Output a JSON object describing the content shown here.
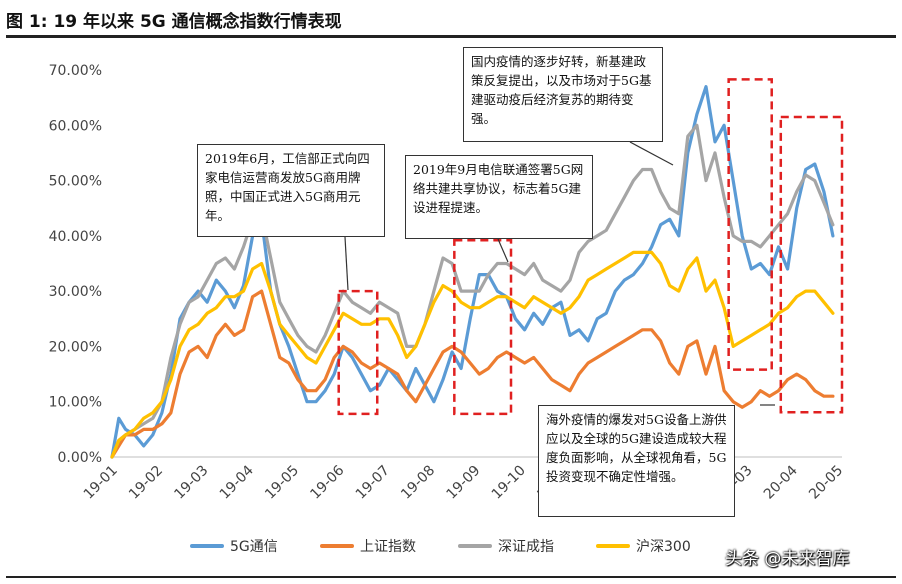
{
  "header": {
    "title": "图 1:  19 年以来 5G 通信概念指数行情表现"
  },
  "watermark": "头条 @未来智库",
  "colors": {
    "5g": "#5B9BD5",
    "sse": "#ED7D31",
    "szse": "#A5A5A5",
    "hs300": "#FFC000",
    "dashed_box": "#E02020"
  },
  "callouts": {
    "june": "2019年6月，工信部正式向四家电信运营商发放5G商用牌照，中国正式进入5G商用元年。",
    "sept": "2019年9月电信联通签署5G网络共建共享协议，标志着5G建设进程提速。",
    "domestic": "国内疫情的逐步好转，新基建政策反复提出，以及市场对于5G基建驱动疫后经济复苏的期待变强。",
    "overseas": "海外疫情的爆发对5G设备上游供应以及全球的5G建设造成较大程度负面影响，从全球视角看，5G投资变现不确定性增强。"
  },
  "chart_data": {
    "type": "line",
    "title": "",
    "xlabel": "",
    "ylabel": "",
    "ylim": [
      0,
      0.7
    ],
    "yticks": [
      "0.00%",
      "10.00%",
      "20.00%",
      "30.00%",
      "40.00%",
      "50.00%",
      "60.00%",
      "70.00%"
    ],
    "xticks": [
      "19-01",
      "19-02",
      "19-03",
      "19-04",
      "19-05",
      "19-06",
      "19-07",
      "19-08",
      "19-09",
      "19-10",
      "19-11",
      "19-12",
      "20-01",
      "20-02",
      "20-03",
      "20-04",
      "20-05"
    ],
    "x": [
      0,
      0.15,
      0.3,
      0.5,
      0.7,
      0.9,
      1.1,
      1.3,
      1.5,
      1.7,
      1.9,
      2.1,
      2.3,
      2.5,
      2.7,
      2.9,
      3.1,
      3.3,
      3.5,
      3.7,
      3.9,
      4.1,
      4.3,
      4.5,
      4.7,
      4.9,
      5.1,
      5.3,
      5.5,
      5.7,
      5.9,
      6.1,
      6.3,
      6.5,
      6.7,
      6.9,
      7.1,
      7.3,
      7.5,
      7.7,
      7.9,
      8.1,
      8.3,
      8.5,
      8.7,
      8.9,
      9.1,
      9.3,
      9.5,
      9.7,
      9.9,
      10.1,
      10.3,
      10.5,
      10.7,
      10.9,
      11.1,
      11.3,
      11.5,
      11.7,
      11.9,
      12.1,
      12.3,
      12.5,
      12.7,
      12.9,
      13.1,
      13.3,
      13.5,
      13.7,
      13.9,
      14.1,
      14.3,
      14.5,
      14.7,
      14.9,
      15.1,
      15.3,
      15.5,
      15.7,
      15.9
    ],
    "series": [
      {
        "name": "5G通信",
        "key": "5g",
        "values": [
          0.0,
          0.07,
          0.05,
          0.04,
          0.02,
          0.04,
          0.08,
          0.15,
          0.25,
          0.28,
          0.3,
          0.28,
          0.32,
          0.3,
          0.27,
          0.31,
          0.4,
          0.43,
          0.3,
          0.24,
          0.2,
          0.15,
          0.1,
          0.1,
          0.12,
          0.15,
          0.2,
          0.18,
          0.15,
          0.12,
          0.13,
          0.16,
          0.14,
          0.12,
          0.16,
          0.13,
          0.1,
          0.14,
          0.19,
          0.16,
          0.25,
          0.33,
          0.33,
          0.3,
          0.29,
          0.25,
          0.23,
          0.26,
          0.24,
          0.27,
          0.28,
          0.22,
          0.23,
          0.21,
          0.25,
          0.26,
          0.3,
          0.32,
          0.33,
          0.35,
          0.38,
          0.42,
          0.43,
          0.4,
          0.55,
          0.62,
          0.67,
          0.57,
          0.6,
          0.5,
          0.4,
          0.34,
          0.35,
          0.33,
          0.38,
          0.34,
          0.45,
          0.52,
          0.53,
          0.48,
          0.4
        ]
      },
      {
        "name": "上证指数",
        "key": "sse",
        "values": [
          0.0,
          0.02,
          0.04,
          0.04,
          0.05,
          0.05,
          0.06,
          0.08,
          0.15,
          0.19,
          0.2,
          0.18,
          0.22,
          0.24,
          0.22,
          0.23,
          0.29,
          0.3,
          0.24,
          0.18,
          0.17,
          0.14,
          0.12,
          0.12,
          0.14,
          0.18,
          0.2,
          0.19,
          0.17,
          0.16,
          0.17,
          0.16,
          0.15,
          0.12,
          0.1,
          0.13,
          0.16,
          0.19,
          0.2,
          0.19,
          0.17,
          0.15,
          0.16,
          0.18,
          0.19,
          0.18,
          0.17,
          0.18,
          0.16,
          0.14,
          0.13,
          0.12,
          0.15,
          0.17,
          0.18,
          0.19,
          0.2,
          0.21,
          0.22,
          0.23,
          0.23,
          0.21,
          0.17,
          0.15,
          0.2,
          0.21,
          0.15,
          0.2,
          0.12,
          0.1,
          0.09,
          0.1,
          0.12,
          0.11,
          0.12,
          0.14,
          0.15,
          0.14,
          0.12,
          0.11,
          0.11
        ]
      },
      {
        "name": "深证成指",
        "key": "szse",
        "values": [
          0.0,
          0.03,
          0.04,
          0.05,
          0.06,
          0.07,
          0.1,
          0.18,
          0.24,
          0.28,
          0.29,
          0.32,
          0.35,
          0.36,
          0.34,
          0.38,
          0.43,
          0.44,
          0.36,
          0.28,
          0.25,
          0.22,
          0.2,
          0.19,
          0.22,
          0.26,
          0.3,
          0.28,
          0.27,
          0.26,
          0.28,
          0.27,
          0.26,
          0.2,
          0.2,
          0.24,
          0.3,
          0.36,
          0.35,
          0.3,
          0.3,
          0.3,
          0.33,
          0.35,
          0.35,
          0.34,
          0.33,
          0.35,
          0.32,
          0.31,
          0.3,
          0.32,
          0.37,
          0.39,
          0.4,
          0.41,
          0.44,
          0.47,
          0.5,
          0.52,
          0.52,
          0.48,
          0.45,
          0.44,
          0.58,
          0.6,
          0.5,
          0.55,
          0.47,
          0.4,
          0.39,
          0.39,
          0.38,
          0.4,
          0.42,
          0.44,
          0.48,
          0.51,
          0.5,
          0.46,
          0.42
        ]
      },
      {
        "name": "沪深300",
        "key": "hs300",
        "values": [
          0.0,
          0.03,
          0.04,
          0.05,
          0.07,
          0.08,
          0.1,
          0.14,
          0.2,
          0.23,
          0.24,
          0.26,
          0.27,
          0.29,
          0.29,
          0.3,
          0.34,
          0.35,
          0.3,
          0.24,
          0.22,
          0.2,
          0.18,
          0.17,
          0.2,
          0.23,
          0.26,
          0.25,
          0.24,
          0.24,
          0.25,
          0.25,
          0.22,
          0.18,
          0.2,
          0.24,
          0.28,
          0.31,
          0.3,
          0.28,
          0.27,
          0.27,
          0.28,
          0.29,
          0.29,
          0.28,
          0.27,
          0.29,
          0.28,
          0.27,
          0.26,
          0.27,
          0.29,
          0.32,
          0.33,
          0.34,
          0.35,
          0.36,
          0.37,
          0.37,
          0.37,
          0.35,
          0.31,
          0.3,
          0.34,
          0.36,
          0.3,
          0.32,
          0.27,
          0.2,
          0.21,
          0.22,
          0.23,
          0.24,
          0.26,
          0.27,
          0.29,
          0.3,
          0.3,
          0.28,
          0.26
        ]
      }
    ],
    "highlight_boxes": [
      {
        "x0": 5.0,
        "x1": 5.85,
        "y0": 0.078,
        "y1": 0.3
      },
      {
        "x0": 7.55,
        "x1": 8.8,
        "y0": 0.078,
        "y1": 0.392
      },
      {
        "x0": 13.6,
        "x1": 14.55,
        "y0": 0.158,
        "y1": 0.683
      },
      {
        "x0": 14.75,
        "x1": 16.1,
        "y0": 0.081,
        "y1": 0.615
      }
    ],
    "legend_position": "bottom",
    "grid": false
  }
}
